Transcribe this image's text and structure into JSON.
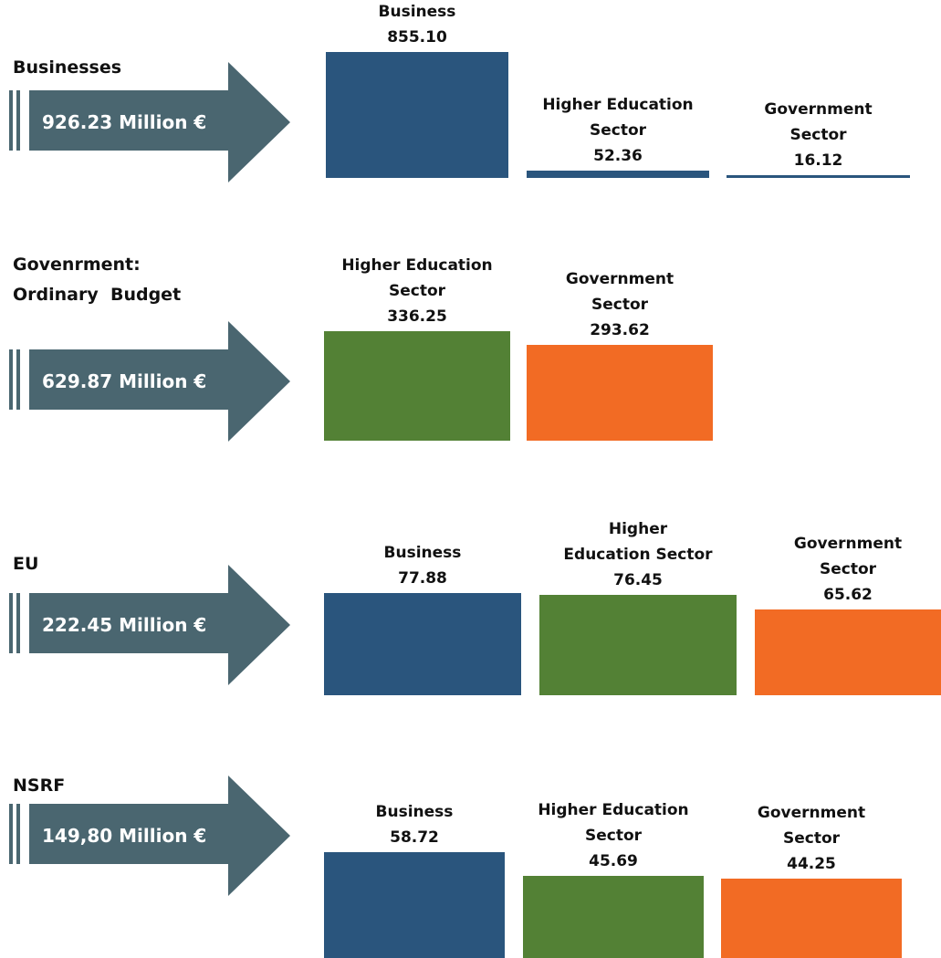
{
  "colors": {
    "arrow": "#4a6670",
    "business": "#2a557d",
    "higher_education": "#538135",
    "government": "#f26b24"
  },
  "chart_data": [
    {
      "type": "bar",
      "title": "Businesses",
      "total": "926.23 Million €",
      "categories": [
        "Business",
        "Higher Education Sector",
        "Government Sector"
      ],
      "values": [
        855.1,
        52.36,
        16.12
      ],
      "labels": [
        [
          "Business",
          "855.10"
        ],
        [
          "Higher Education",
          "Sector",
          "52.36"
        ],
        [
          "Government",
          "Sector",
          "16.12"
        ]
      ],
      "color_keys": [
        "business",
        "business",
        "business"
      ]
    },
    {
      "type": "bar",
      "title": "Govenrment: Ordinary  Budget",
      "title_lines": [
        "Govenrment:",
        "Ordinary  Budget"
      ],
      "total": "629.87 Million €",
      "categories": [
        "Higher Education Sector",
        "Government Sector"
      ],
      "values": [
        336.25,
        293.62
      ],
      "labels": [
        [
          "Higher Education",
          "Sector",
          "336.25"
        ],
        [
          "Government",
          "Sector",
          "293.62"
        ]
      ],
      "color_keys": [
        "higher_education",
        "government"
      ]
    },
    {
      "type": "bar",
      "title": "EU",
      "total": "222.45 Million €",
      "categories": [
        "Business",
        "Higher Education Sector",
        "Government Sector"
      ],
      "values": [
        77.88,
        76.45,
        65.62
      ],
      "labels": [
        [
          "Business",
          "77.88"
        ],
        [
          "Higher",
          "Education Sector",
          "76.45"
        ],
        [
          "Government",
          "Sector",
          "65.62"
        ]
      ],
      "color_keys": [
        "business",
        "higher_education",
        "government"
      ]
    },
    {
      "type": "bar",
      "title": "NSRF",
      "total": "149,80 Million €",
      "categories": [
        "Business",
        "Higher Education Sector",
        "Government Sector"
      ],
      "values": [
        58.72,
        45.69,
        44.25
      ],
      "labels": [
        [
          "Business",
          "58.72"
        ],
        [
          "Higher Education",
          "Sector",
          "45.69"
        ],
        [
          "Government",
          "Sector",
          "44.25"
        ]
      ],
      "color_keys": [
        "business",
        "higher_education",
        "government"
      ]
    }
  ]
}
